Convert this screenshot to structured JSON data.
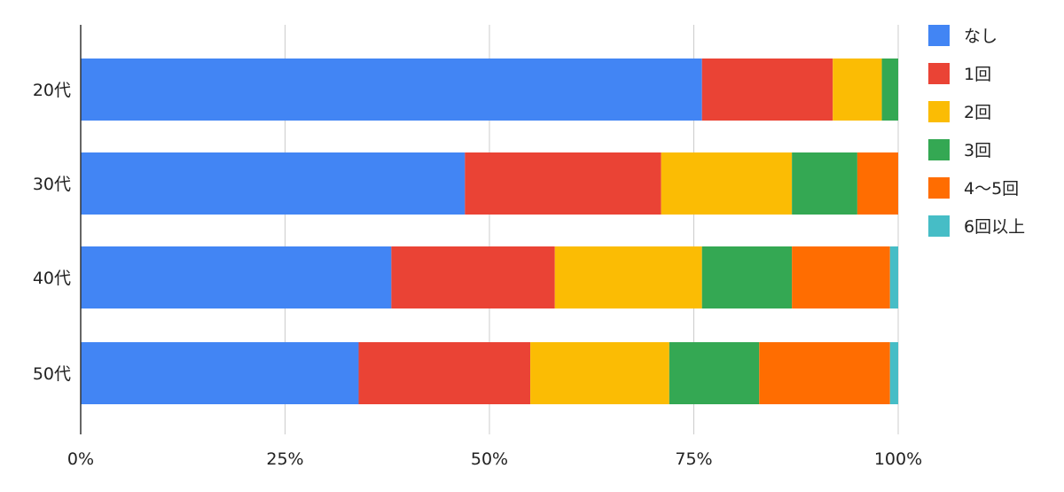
{
  "chart_data": {
    "type": "bar",
    "orientation": "horizontal",
    "stacked": "percent",
    "categories": [
      "20代",
      "30代",
      "40代",
      "50代"
    ],
    "series": [
      {
        "name": "なし",
        "color": "#4285f4",
        "values": [
          76,
          47,
          38,
          34
        ]
      },
      {
        "name": "1回",
        "color": "#ea4335",
        "values": [
          16,
          24,
          20,
          21
        ]
      },
      {
        "name": "2回",
        "color": "#fbbc04",
        "values": [
          6,
          16,
          18,
          17
        ]
      },
      {
        "name": "3回",
        "color": "#34a853",
        "values": [
          2,
          8,
          11,
          11
        ]
      },
      {
        "name": "4〜5回",
        "color": "#ff6d01",
        "values": [
          0,
          5,
          12,
          16
        ]
      },
      {
        "name": "6回以上",
        "color": "#46bdc6",
        "values": [
          0,
          0,
          1,
          1
        ]
      }
    ],
    "xticks": [
      "0%",
      "25%",
      "50%",
      "75%",
      "100%"
    ],
    "xlim": [
      0,
      100
    ],
    "grid": true,
    "legend_position": "right"
  }
}
